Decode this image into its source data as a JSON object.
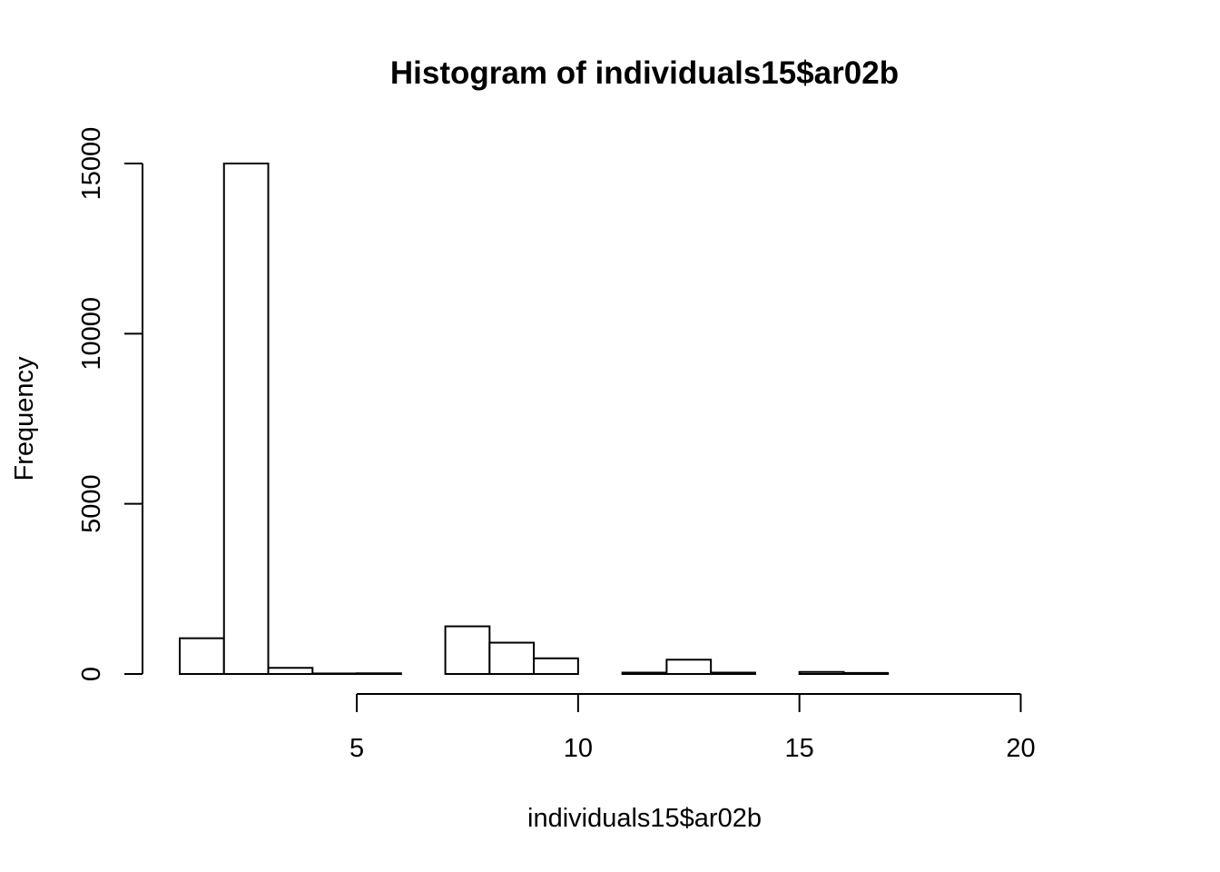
{
  "chart_data": {
    "type": "bar",
    "title": "Histogram of individuals15$ar02b",
    "xlabel": "individuals15$ar02b",
    "ylabel": "Frequency",
    "bin_edges": [
      1,
      2,
      3,
      4,
      5,
      6,
      7,
      8,
      9,
      10,
      11,
      12,
      13,
      14,
      15,
      16,
      17,
      18,
      19,
      20,
      21,
      22
    ],
    "values": [
      1050,
      15000,
      180,
      15,
      20,
      0,
      1400,
      920,
      460,
      0,
      40,
      420,
      40,
      0,
      60,
      30,
      0,
      0,
      0,
      0,
      0
    ],
    "xlim": [
      1,
      22
    ],
    "ylim": [
      0,
      15000
    ],
    "x_ticks": [
      5,
      10,
      15,
      20
    ],
    "y_ticks": [
      0,
      5000,
      10000,
      15000
    ],
    "grid": false,
    "colors": {
      "bar_fill": "#ffffff",
      "bar_stroke": "#000000"
    }
  }
}
